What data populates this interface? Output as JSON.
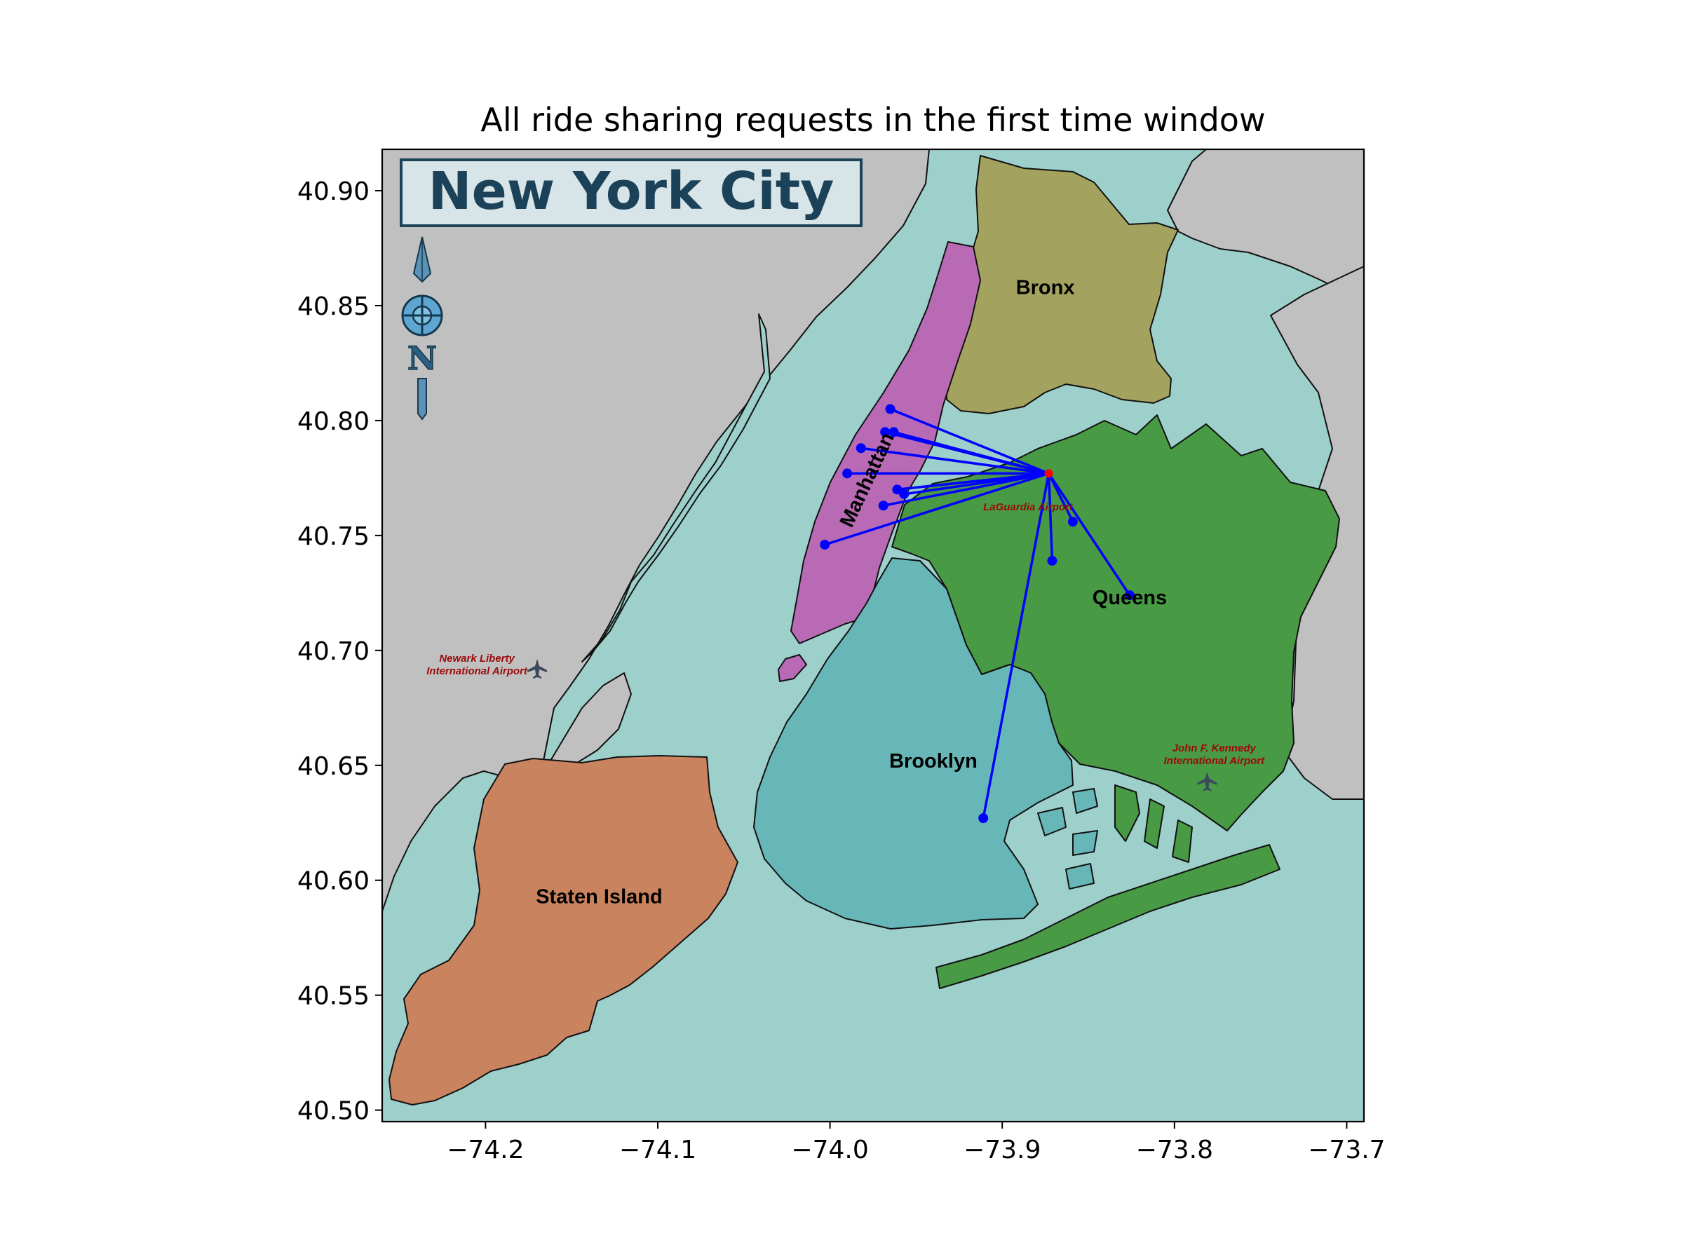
{
  "chart_data": {
    "type": "scatter",
    "title": "All ride sharing requests in the first time window",
    "xlabel": "",
    "ylabel": "",
    "xlim": [
      -74.26,
      -73.69
    ],
    "ylim": [
      40.495,
      40.918
    ],
    "xticks": [
      -74.2,
      -74.1,
      -74.0,
      -73.9,
      -73.8,
      -73.7
    ],
    "xtick_labels": [
      "−74.2",
      "−74.1",
      "−74.0",
      "−73.9",
      "−73.8",
      "−73.7"
    ],
    "yticks": [
      40.5,
      40.55,
      40.6,
      40.65,
      40.7,
      40.75,
      40.8,
      40.85,
      40.9
    ],
    "ytick_labels": [
      "40.50",
      "40.55",
      "40.60",
      "40.65",
      "40.70",
      "40.75",
      "40.80",
      "40.85",
      "40.90"
    ],
    "grid": false,
    "hub": {
      "x": -73.873,
      "y": 40.777,
      "color": "#ff0000"
    },
    "series": [
      {
        "color": "#0000ff",
        "points": [
          {
            "x": -73.965,
            "y": 40.805
          },
          {
            "x": -73.968,
            "y": 40.795
          },
          {
            "x": -73.963,
            "y": 40.795
          },
          {
            "x": -73.982,
            "y": 40.788
          },
          {
            "x": -73.99,
            "y": 40.777
          },
          {
            "x": -73.961,
            "y": 40.77
          },
          {
            "x": -73.957,
            "y": 40.768
          },
          {
            "x": -73.969,
            "y": 40.763
          },
          {
            "x": -74.003,
            "y": 40.746
          },
          {
            "x": -73.859,
            "y": 40.756
          },
          {
            "x": -73.871,
            "y": 40.739
          },
          {
            "x": -73.826,
            "y": 40.724
          },
          {
            "x": -73.911,
            "y": 40.627
          }
        ]
      }
    ]
  },
  "map": {
    "badge_title": "New York City",
    "compass_letter": "N",
    "colors": {
      "water": "#9dcfcb",
      "land": "#c0c0c0",
      "manhattan": "#b86bb4",
      "bronx": "#a3a25e",
      "queens": "#489a45",
      "brooklyn": "#68b7b8",
      "staten_island": "#c9835e",
      "outline": "#111111"
    },
    "boroughs": [
      {
        "name": "Bronx",
        "x": -73.875,
        "y": 40.855
      },
      {
        "name": "Manhattan",
        "x": -73.975,
        "y": 40.773,
        "rotate": -65
      },
      {
        "name": "Queens",
        "x": -73.826,
        "y": 40.72
      },
      {
        "name": "Brooklyn",
        "x": -73.94,
        "y": 40.649
      },
      {
        "name": "Staten Island",
        "x": -74.134,
        "y": 40.59
      }
    ],
    "airports": [
      {
        "lines": [
          "Newark Liberty",
          "International Airport"
        ],
        "x": -74.205,
        "y": 40.695,
        "anchor": "middle",
        "icon_x": -74.17,
        "icon_y": 40.692
      },
      {
        "lines": [
          "LaGuardia Airport"
        ],
        "x": -73.885,
        "y": 40.761,
        "anchor": "middle",
        "icon_x": null,
        "icon_y": null
      },
      {
        "lines": [
          "John F. Kennedy",
          "International Airport"
        ],
        "x": -73.777,
        "y": 40.656,
        "anchor": "middle",
        "icon_x": -73.781,
        "icon_y": 40.643
      }
    ]
  }
}
